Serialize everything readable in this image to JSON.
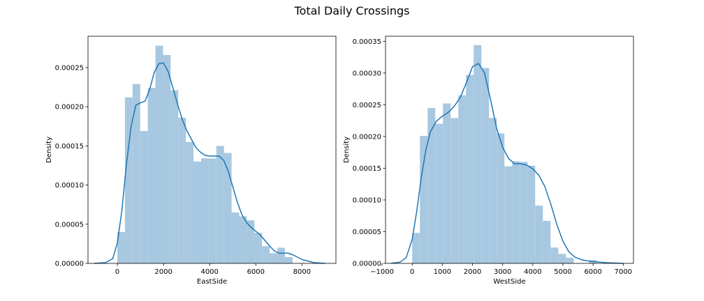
{
  "figure": {
    "suptitle": "Total Daily Crossings"
  },
  "colors": {
    "bar_fill": "#a7c8e0",
    "kde_line": "#1f77b4",
    "axes_edge": "#000000"
  },
  "chart_data": [
    {
      "type": "histogram",
      "title": "",
      "xlabel": "EastSide",
      "ylabel": "Density",
      "xlim": [
        -1270,
        9470
      ],
      "ylim": [
        0,
        0.00029
      ],
      "xticks": [
        0,
        2000,
        4000,
        6000,
        8000
      ],
      "yticks": [
        0,
        5e-05,
        0.0001,
        0.00015,
        0.0002,
        0.00025
      ],
      "ytick_labels": [
        "0.00000",
        "0.00005",
        "0.00010",
        "0.00015",
        "0.00020",
        "0.00025"
      ],
      "bin_start": 0,
      "bin_width": 330,
      "bar_heights": [
        4e-05,
        0.000212,
        0.000229,
        0.000169,
        0.000224,
        0.000278,
        0.000266,
        0.000221,
        0.000186,
        0.000155,
        0.00013,
        0.000134,
        0.000134,
        0.00015,
        0.000141,
        6.5e-05,
        6e-05,
        5.5e-05,
        3.9e-05,
        2.2e-05,
        1.3e-05,
        2e-05,
        8e-06
      ],
      "kde": {
        "x": [
          -1000,
          -500,
          -200,
          0,
          200,
          400,
          600,
          800,
          1000,
          1200,
          1400,
          1600,
          1800,
          2000,
          2200,
          2400,
          2600,
          2800,
          3000,
          3200,
          3400,
          3600,
          3800,
          4000,
          4200,
          4400,
          4600,
          4800,
          5000,
          5200,
          5400,
          5600,
          5800,
          6000,
          6200,
          6400,
          6600,
          6800,
          7000,
          7200,
          7400,
          7600,
          7800,
          8000,
          8500,
          9000
        ],
        "y": [
          0,
          1e-06,
          6e-06,
          2.6e-05,
          6.8e-05,
          0.000128,
          0.000175,
          0.000202,
          0.000205,
          0.000207,
          0.000222,
          0.000244,
          0.000255,
          0.000256,
          0.000245,
          0.000225,
          0.000204,
          0.000185,
          0.00017,
          0.000159,
          0.000148,
          0.000142,
          0.000138,
          0.000137,
          0.000137,
          0.000137,
          0.000132,
          0.000118,
          9.8e-05,
          7.8e-05,
          6.2e-05,
          5.2e-05,
          4.6e-05,
          4.1e-05,
          3.6e-05,
          2.9e-05,
          2.2e-05,
          1.6e-05,
          1.3e-05,
          1.3e-05,
          1.3e-05,
          1.1e-05,
          8e-06,
          5e-06,
          1e-06,
          0
        ]
      }
    },
    {
      "type": "histogram",
      "title": "",
      "xlabel": "WestSide",
      "ylabel": "Density",
      "xlim": [
        -885,
        7340
      ],
      "ylim": [
        0,
        0.000358
      ],
      "xticks": [
        -1000,
        0,
        1000,
        2000,
        3000,
        4000,
        5000,
        6000,
        7000
      ],
      "xtick_labels": [
        "−1000",
        "0",
        "1000",
        "2000",
        "3000",
        "4000",
        "5000",
        "6000",
        "7000"
      ],
      "yticks": [
        0,
        5e-05,
        0.0001,
        0.00015,
        0.0002,
        0.00025,
        0.0003,
        0.00035
      ],
      "ytick_labels": [
        "0.00000",
        "0.00005",
        "0.00010",
        "0.00015",
        "0.00020",
        "0.00025",
        "0.00030",
        "0.00035"
      ],
      "bin_start": 0,
      "bin_width": 255,
      "bar_heights": [
        4.8e-05,
        0.000201,
        0.000245,
        0.00022,
        0.000252,
        0.000229,
        0.000265,
        0.000297,
        0.000344,
        0.000308,
        0.000229,
        0.000205,
        0.000153,
        0.000161,
        0.00016,
        0.000154,
        9.1e-05,
        6.7e-05,
        2.5e-05,
        1.5e-05,
        9e-06,
        0,
        0,
        5e-06
      ],
      "kde": {
        "x": [
          -700,
          -400,
          -200,
          0,
          150,
          300,
          450,
          600,
          800,
          1000,
          1200,
          1400,
          1600,
          1800,
          2000,
          2200,
          2400,
          2600,
          2800,
          3000,
          3200,
          3400,
          3600,
          3800,
          4000,
          4200,
          4400,
          4600,
          4800,
          5000,
          5200,
          5400,
          5600,
          5800,
          6000,
          6200,
          6500,
          7000
        ],
        "y": [
          0,
          2e-06,
          9e-06,
          3.8e-05,
          8.2e-05,
          0.000135,
          0.000178,
          0.000207,
          0.000224,
          0.000232,
          0.000238,
          0.000248,
          0.000262,
          0.000285,
          0.00031,
          0.000315,
          0.0003,
          0.000258,
          0.000213,
          0.000183,
          0.000165,
          0.000157,
          0.000157,
          0.000155,
          0.000149,
          0.000139,
          0.000121,
          9.3e-05,
          6.1e-05,
          3.5e-05,
          1.8e-05,
          1e-05,
          6e-06,
          4e-06,
          3e-06,
          2e-06,
          1e-06,
          0
        ]
      }
    }
  ]
}
